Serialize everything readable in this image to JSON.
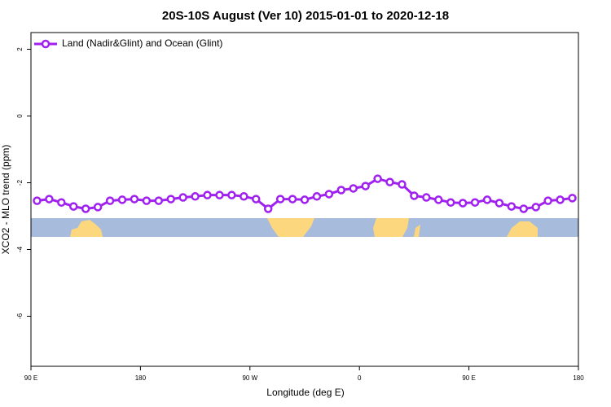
{
  "chart_data": {
    "type": "line",
    "title": "20S-10S August (Ver 10)   2015-01-01 to 2020-12-18",
    "x_label": "Longitude (deg E)",
    "y_label": "XCO2 - MLO trend (ppm)",
    "x": [
      95,
      105,
      115,
      125,
      135,
      145,
      155,
      165,
      175,
      185,
      195,
      205,
      215,
      225,
      235,
      245,
      255,
      265,
      275,
      285,
      295,
      305,
      315,
      325,
      335,
      345,
      355,
      365,
      375,
      385,
      395,
      405,
      415,
      425,
      435,
      445,
      455,
      465,
      475,
      485,
      495,
      505,
      515,
      525,
      535
    ],
    "series": [
      {
        "name": "Land (Nadir&Glint) and Ocean (Glint)",
        "color": "#a020f0",
        "values": [
          -2.54,
          -2.49,
          -2.59,
          -2.71,
          -2.78,
          -2.73,
          -2.54,
          -2.51,
          -2.49,
          -2.54,
          -2.54,
          -2.49,
          -2.44,
          -2.41,
          -2.37,
          -2.37,
          -2.37,
          -2.41,
          -2.49,
          -2.78,
          -2.49,
          -2.49,
          -2.51,
          -2.41,
          -2.34,
          -2.22,
          -2.17,
          -2.1,
          -1.88,
          -1.98,
          -2.05,
          -2.39,
          -2.44,
          -2.51,
          -2.59,
          -2.61,
          -2.59,
          -2.51,
          -2.61,
          -2.71,
          -2.78,
          -2.73,
          -2.54,
          -2.51,
          -2.46
        ]
      }
    ],
    "xlim": [
      90,
      540
    ],
    "xticks": [
      {
        "value": 90,
        "label": "90 E"
      },
      180,
      {
        "value": 270,
        "label": "90 W"
      },
      {
        "value": 360,
        "label": "0"
      },
      {
        "value": 450,
        "label": "90 E"
      },
      {
        "value": 540,
        "label": "180"
      }
    ],
    "ylim": [
      -7.5,
      2.5
    ],
    "yticks": [
      2,
      0,
      -2,
      -4,
      -6
    ],
    "legend": "top-left"
  }
}
